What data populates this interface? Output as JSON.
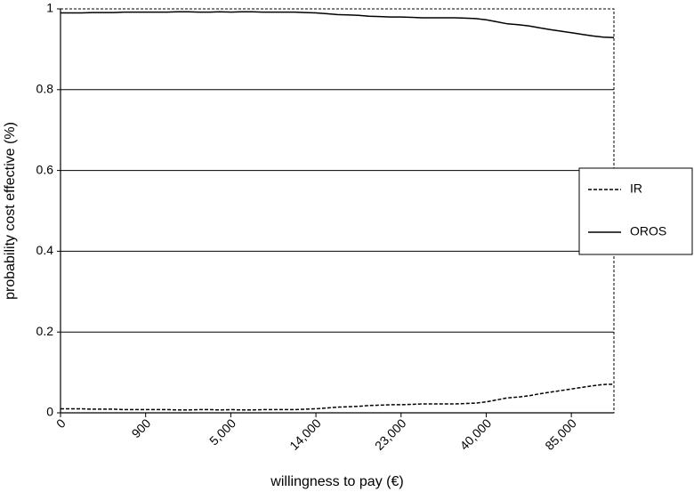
{
  "chart_data": {
    "type": "line",
    "xlabel": "willingness to pay (€)",
    "ylabel": "probability cost effective (%)",
    "categories": [
      "0",
      null,
      null,
      null,
      null,
      null,
      null,
      null,
      "900",
      null,
      null,
      null,
      null,
      null,
      null,
      null,
      "5,000",
      null,
      null,
      null,
      null,
      null,
      null,
      null,
      "14,000",
      null,
      null,
      null,
      null,
      null,
      null,
      null,
      "23,000",
      null,
      null,
      null,
      null,
      null,
      null,
      null,
      "40,000",
      null,
      null,
      null,
      null,
      null,
      null,
      null,
      "85,000",
      null,
      null,
      null,
      null
    ],
    "series": [
      {
        "name": "IR",
        "color": "#000000",
        "style": "dashed",
        "values": [
          0.01,
          0.01,
          0.01,
          0.009,
          0.009,
          0.009,
          0.008,
          0.008,
          0.008,
          0.008,
          0.008,
          0.007,
          0.007,
          0.008,
          0.008,
          0.007,
          0.008,
          0.007,
          0.007,
          0.008,
          0.008,
          0.008,
          0.008,
          0.009,
          0.01,
          0.012,
          0.014,
          0.015,
          0.016,
          0.018,
          0.019,
          0.02,
          0.02,
          0.021,
          0.022,
          0.022,
          0.022,
          0.022,
          0.023,
          0.024,
          0.027,
          0.032,
          0.037,
          0.039,
          0.042,
          0.047,
          0.051,
          0.055,
          0.059,
          0.063,
          0.067,
          0.07,
          0.071
        ]
      },
      {
        "name": "OROS",
        "color": "#000000",
        "style": "solid",
        "values": [
          0.99,
          0.99,
          0.99,
          0.991,
          0.991,
          0.991,
          0.992,
          0.992,
          0.992,
          0.992,
          0.992,
          0.993,
          0.993,
          0.992,
          0.992,
          0.993,
          0.992,
          0.993,
          0.993,
          0.992,
          0.992,
          0.992,
          0.992,
          0.991,
          0.99,
          0.988,
          0.986,
          0.985,
          0.984,
          0.982,
          0.981,
          0.98,
          0.98,
          0.979,
          0.978,
          0.978,
          0.978,
          0.978,
          0.977,
          0.976,
          0.973,
          0.968,
          0.963,
          0.961,
          0.958,
          0.953,
          0.949,
          0.945,
          0.941,
          0.937,
          0.933,
          0.93,
          0.929
        ]
      }
    ],
    "ylim": [
      0,
      1
    ],
    "yticks": [
      0,
      0.2,
      0.4,
      0.6,
      0.8,
      1
    ],
    "grid": true,
    "legend": "right"
  }
}
